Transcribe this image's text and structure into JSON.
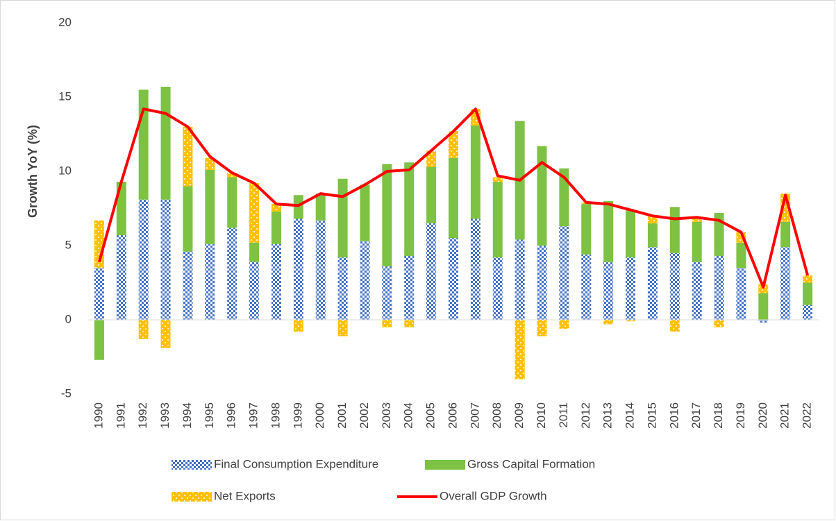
{
  "chart_data": {
    "type": "stacked_bar_line",
    "y_axis_label": "Growth YoY (%)",
    "categories": [
      "1990",
      "1991",
      "1992",
      "1993",
      "1994",
      "1995",
      "1996",
      "1997",
      "1998",
      "1999",
      "2000",
      "2001",
      "2002",
      "2003",
      "2004",
      "2005",
      "2006",
      "2007",
      "2008",
      "2009",
      "2010",
      "2011",
      "2012",
      "2013",
      "2014",
      "2015",
      "2016",
      "2017",
      "2018",
      "2019",
      "2020",
      "2021",
      "2022"
    ],
    "series": [
      {
        "name": "Final Consumption Expenditure",
        "type": "bar",
        "color": "#4472c4",
        "values": [
          3.5,
          5.7,
          8.1,
          8.1,
          4.6,
          5.1,
          6.2,
          3.9,
          5.1,
          6.8,
          6.7,
          4.2,
          5.3,
          3.6,
          4.3,
          6.5,
          5.5,
          6.8,
          4.2,
          5.4,
          5.0,
          6.3,
          4.4,
          3.9,
          4.2,
          4.9,
          4.5,
          3.9,
          4.3,
          3.5,
          -0.2,
          4.9,
          1.0
        ]
      },
      {
        "name": "Gross Capital Formation",
        "type": "bar",
        "color": "#7dc242",
        "values": [
          -2.7,
          3.6,
          7.4,
          7.6,
          4.4,
          5.0,
          3.4,
          1.3,
          2.2,
          1.6,
          1.8,
          5.3,
          3.8,
          6.9,
          6.3,
          3.8,
          5.4,
          6.3,
          5.1,
          8.0,
          6.7,
          3.9,
          3.4,
          4.1,
          3.2,
          1.6,
          3.1,
          2.7,
          2.9,
          1.7,
          1.8,
          1.7,
          1.5
        ]
      },
      {
        "name": "Net Exports",
        "type": "bar",
        "color": "#ffc000",
        "values": [
          3.2,
          0,
          -1.3,
          -1.9,
          4.0,
          0.8,
          0.3,
          4.0,
          0.5,
          -0.8,
          0,
          -1.1,
          0,
          -0.5,
          -0.5,
          1.1,
          1.8,
          1.1,
          0.3,
          -4.0,
          -1.1,
          -0.6,
          0.1,
          -0.3,
          -0.1,
          0.5,
          -0.8,
          0.3,
          -0.5,
          0.7,
          0.6,
          1.9,
          0.5
        ]
      },
      {
        "name": "Overall GDP Growth",
        "type": "line",
        "color": "#ff0000",
        "values": [
          3.9,
          9.3,
          14.2,
          13.9,
          13.0,
          11.0,
          9.9,
          9.2,
          7.8,
          7.7,
          8.5,
          8.3,
          9.1,
          10.0,
          10.1,
          11.4,
          12.7,
          14.2,
          9.7,
          9.4,
          10.6,
          9.6,
          7.9,
          7.8,
          7.4,
          7.0,
          6.8,
          6.9,
          6.7,
          5.9,
          2.2,
          8.4,
          3.0
        ]
      }
    ],
    "ylim": [
      -5,
      20
    ],
    "yticks": [
      -5,
      0,
      5,
      10,
      15,
      20
    ],
    "legend": "bottom"
  }
}
